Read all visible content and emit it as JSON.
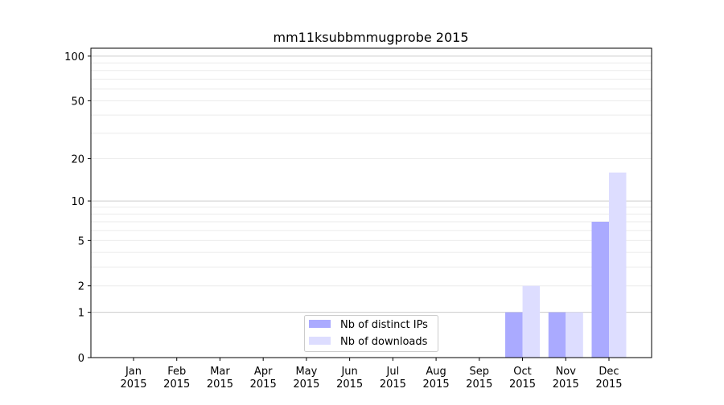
{
  "chart_data": {
    "type": "bar",
    "title": "mm11ksubbmmugprobe 2015",
    "xlabel": "",
    "ylabel": "",
    "categories": [
      "Jan\n2015",
      "Feb\n2015",
      "Mar\n2015",
      "Apr\n2015",
      "May\n2015",
      "Jun\n2015",
      "Jul\n2015",
      "Aug\n2015",
      "Sep\n2015",
      "Oct\n2015",
      "Nov\n2015",
      "Dec\n2015"
    ],
    "series": [
      {
        "name": "Nb of distinct IPs",
        "color": "#aaaaff",
        "values": [
          0,
          0,
          0,
          0,
          0,
          0,
          0,
          0,
          0,
          1,
          1,
          7
        ]
      },
      {
        "name": "Nb of downloads",
        "color": "#ddddff",
        "values": [
          0,
          0,
          0,
          0,
          0,
          0,
          0,
          0,
          0,
          2,
          1,
          16
        ]
      }
    ],
    "yscale": "log(1+y)",
    "ylim": [
      0,
      113
    ],
    "yticks": [
      0,
      1,
      2,
      5,
      10,
      20,
      50,
      100
    ],
    "grid": true,
    "legend": "lower-center"
  }
}
